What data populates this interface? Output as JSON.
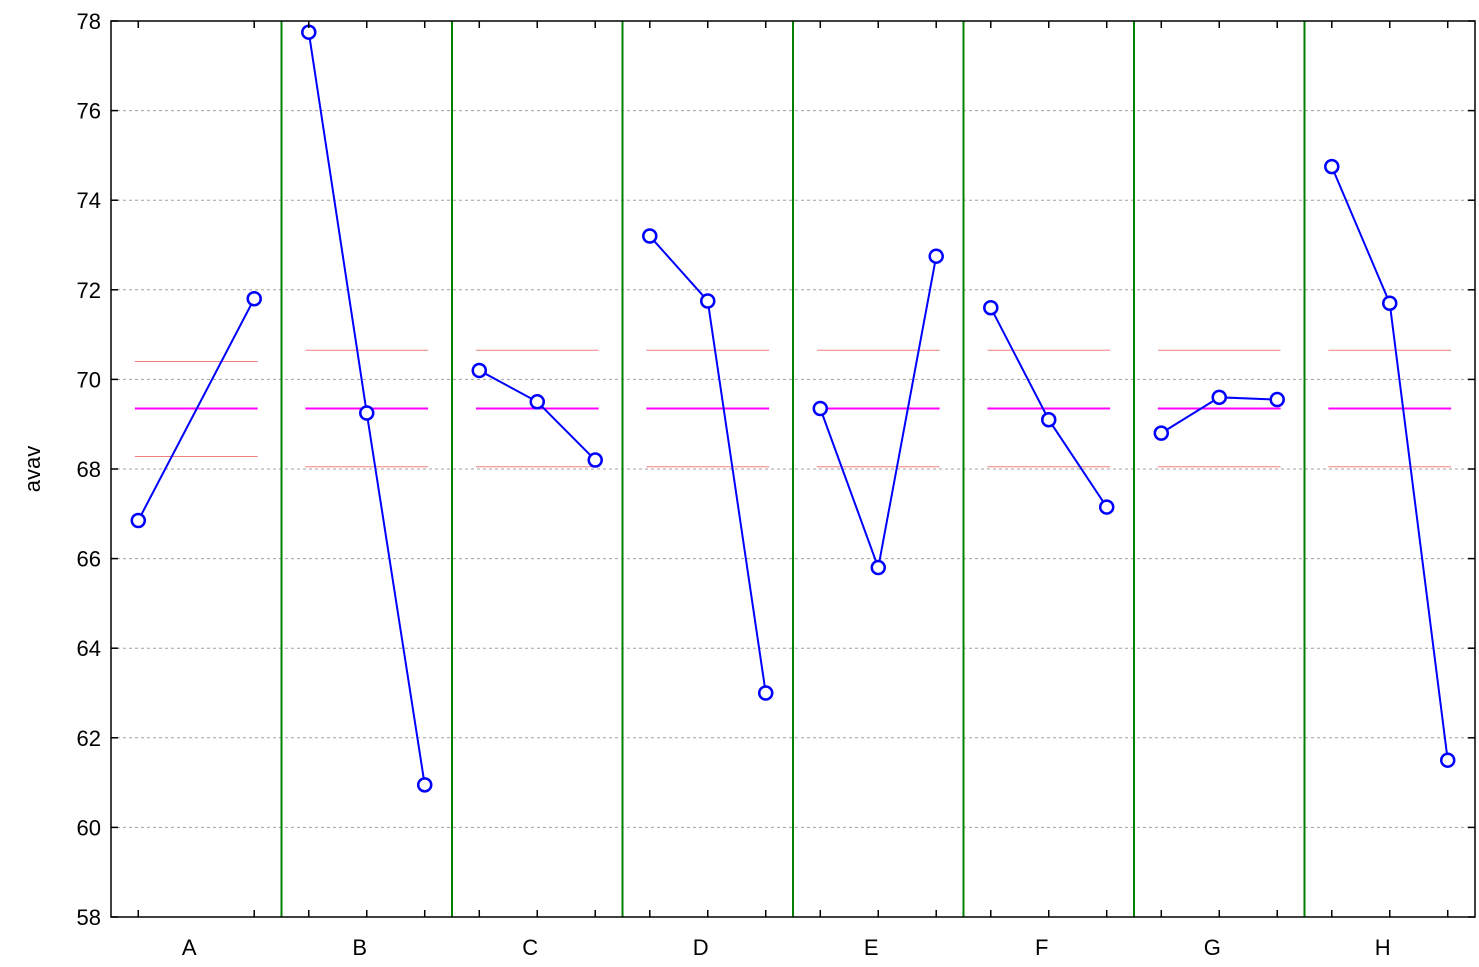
{
  "chart_data": {
    "type": "line",
    "title": "",
    "ylabel": "avav",
    "xlabel": "",
    "ylim": [
      58,
      78
    ],
    "yticks": [
      58,
      60,
      62,
      64,
      66,
      68,
      70,
      72,
      74,
      76,
      78
    ],
    "grid": true,
    "grand_mean": 69.35,
    "limits": {
      "upper": 70.65,
      "lower": 68.05
    },
    "factors": [
      {
        "name": "A",
        "values": [
          66.85,
          71.8
        ],
        "limits": [
          70.4,
          68.28
        ]
      },
      {
        "name": "B",
        "values": [
          77.75,
          69.25,
          60.95
        ]
      },
      {
        "name": "C",
        "values": [
          70.2,
          69.5,
          68.2
        ]
      },
      {
        "name": "D",
        "values": [
          73.2,
          71.75,
          63.0
        ]
      },
      {
        "name": "E",
        "values": [
          69.35,
          65.8,
          72.75
        ]
      },
      {
        "name": "F",
        "values": [
          71.6,
          69.1,
          67.15
        ]
      },
      {
        "name": "G",
        "values": [
          68.8,
          69.6,
          69.55
        ]
      },
      {
        "name": "H",
        "values": [
          74.75,
          71.7,
          61.5
        ]
      }
    ],
    "colors": {
      "series": "#0000ff",
      "grand_mean": "#ff00ff",
      "limits": "#f08080",
      "separator": "#008000",
      "grid": "#a0a0a0"
    }
  }
}
